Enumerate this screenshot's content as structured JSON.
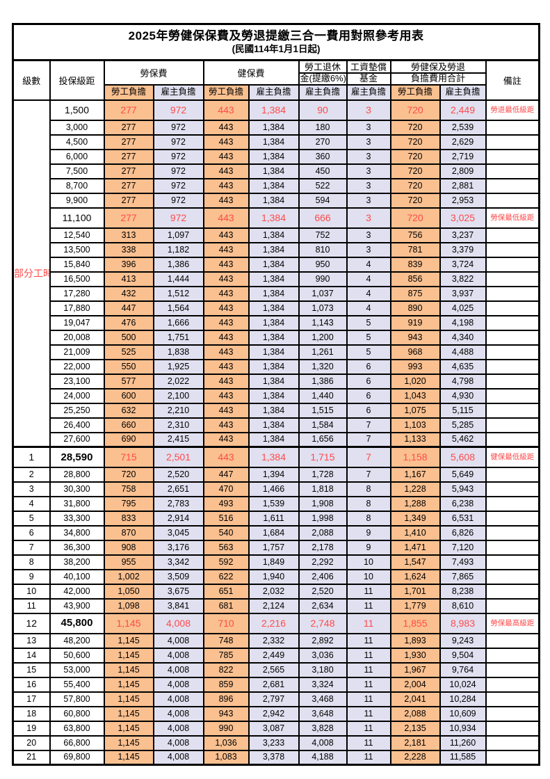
{
  "title": "2025年勞健保保費及勞退提繳三合一費用對照參考用表",
  "subtitle": "(民國114年1月1日起)",
  "columns": {
    "level": "級數",
    "bracket": "投保級距",
    "labor_insurance": "勞保費",
    "health_insurance": "健保費",
    "pension_line1": "勞工退休",
    "pension_line2": "金(提繳6%)",
    "wage_fund_line1": "工資墊償",
    "wage_fund_line2": "基金",
    "total_line1": "勞健保及勞退",
    "total_line2": "負擔費用合計",
    "remark": "備註",
    "employee_share": "勞工負擔",
    "employer_share": "雇主負擔"
  },
  "part_time_label": "部分工時",
  "colors": {
    "employee_bg": "#FAC090",
    "employer_bg": "#E0E0F0",
    "highlight_text": "#FF4A4A",
    "border": "#000000"
  },
  "rows": [
    {
      "level": "",
      "bracket": "1,500",
      "labor_emp": "277",
      "labor_er": "972",
      "health_emp": "443",
      "health_er": "1,384",
      "pension_er": "90",
      "fund_er": "3",
      "total_emp": "720",
      "total_er": "2,449",
      "remark": "勞退最低級距",
      "highlight": true,
      "bold_bracket": false
    },
    {
      "level": "",
      "bracket": "3,000",
      "labor_emp": "277",
      "labor_er": "972",
      "health_emp": "443",
      "health_er": "1,384",
      "pension_er": "180",
      "fund_er": "3",
      "total_emp": "720",
      "total_er": "2,539",
      "remark": "",
      "highlight": false,
      "bold_bracket": false
    },
    {
      "level": "",
      "bracket": "4,500",
      "labor_emp": "277",
      "labor_er": "972",
      "health_emp": "443",
      "health_er": "1,384",
      "pension_er": "270",
      "fund_er": "3",
      "total_emp": "720",
      "total_er": "2,629",
      "remark": "",
      "highlight": false,
      "bold_bracket": false
    },
    {
      "level": "",
      "bracket": "6,000",
      "labor_emp": "277",
      "labor_er": "972",
      "health_emp": "443",
      "health_er": "1,384",
      "pension_er": "360",
      "fund_er": "3",
      "total_emp": "720",
      "total_er": "2,719",
      "remark": "",
      "highlight": false,
      "bold_bracket": false
    },
    {
      "level": "",
      "bracket": "7,500",
      "labor_emp": "277",
      "labor_er": "972",
      "health_emp": "443",
      "health_er": "1,384",
      "pension_er": "450",
      "fund_er": "3",
      "total_emp": "720",
      "total_er": "2,809",
      "remark": "",
      "highlight": false,
      "bold_bracket": false
    },
    {
      "level": "",
      "bracket": "8,700",
      "labor_emp": "277",
      "labor_er": "972",
      "health_emp": "443",
      "health_er": "1,384",
      "pension_er": "522",
      "fund_er": "3",
      "total_emp": "720",
      "total_er": "2,881",
      "remark": "",
      "highlight": false,
      "bold_bracket": false
    },
    {
      "level": "",
      "bracket": "9,900",
      "labor_emp": "277",
      "labor_er": "972",
      "health_emp": "443",
      "health_er": "1,384",
      "pension_er": "594",
      "fund_er": "3",
      "total_emp": "720",
      "total_er": "2,953",
      "remark": "",
      "highlight": false,
      "bold_bracket": false
    },
    {
      "level": "",
      "bracket": "11,100",
      "labor_emp": "277",
      "labor_er": "972",
      "health_emp": "443",
      "health_er": "1,384",
      "pension_er": "666",
      "fund_er": "3",
      "total_emp": "720",
      "total_er": "3,025",
      "remark": "勞保最低級距",
      "highlight": true,
      "bold_bracket": false
    },
    {
      "level": "",
      "bracket": "12,540",
      "labor_emp": "313",
      "labor_er": "1,097",
      "health_emp": "443",
      "health_er": "1,384",
      "pension_er": "752",
      "fund_er": "3",
      "total_emp": "756",
      "total_er": "3,237",
      "remark": "",
      "highlight": false,
      "bold_bracket": false
    },
    {
      "level": "",
      "bracket": "13,500",
      "labor_emp": "338",
      "labor_er": "1,182",
      "health_emp": "443",
      "health_er": "1,384",
      "pension_er": "810",
      "fund_er": "3",
      "total_emp": "781",
      "total_er": "3,379",
      "remark": "",
      "highlight": false,
      "bold_bracket": false
    },
    {
      "level": "",
      "bracket": "15,840",
      "labor_emp": "396",
      "labor_er": "1,386",
      "health_emp": "443",
      "health_er": "1,384",
      "pension_er": "950",
      "fund_er": "4",
      "total_emp": "839",
      "total_er": "3,724",
      "remark": "",
      "highlight": false,
      "bold_bracket": false
    },
    {
      "level": "",
      "bracket": "16,500",
      "labor_emp": "413",
      "labor_er": "1,444",
      "health_emp": "443",
      "health_er": "1,384",
      "pension_er": "990",
      "fund_er": "4",
      "total_emp": "856",
      "total_er": "3,822",
      "remark": "",
      "highlight": false,
      "bold_bracket": false
    },
    {
      "level": "",
      "bracket": "17,280",
      "labor_emp": "432",
      "labor_er": "1,512",
      "health_emp": "443",
      "health_er": "1,384",
      "pension_er": "1,037",
      "fund_er": "4",
      "total_emp": "875",
      "total_er": "3,937",
      "remark": "",
      "highlight": false,
      "bold_bracket": false
    },
    {
      "level": "",
      "bracket": "17,880",
      "labor_emp": "447",
      "labor_er": "1,564",
      "health_emp": "443",
      "health_er": "1,384",
      "pension_er": "1,073",
      "fund_er": "4",
      "total_emp": "890",
      "total_er": "4,025",
      "remark": "",
      "highlight": false,
      "bold_bracket": false
    },
    {
      "level": "",
      "bracket": "19,047",
      "labor_emp": "476",
      "labor_er": "1,666",
      "health_emp": "443",
      "health_er": "1,384",
      "pension_er": "1,143",
      "fund_er": "5",
      "total_emp": "919",
      "total_er": "4,198",
      "remark": "",
      "highlight": false,
      "bold_bracket": false
    },
    {
      "level": "",
      "bracket": "20,008",
      "labor_emp": "500",
      "labor_er": "1,751",
      "health_emp": "443",
      "health_er": "1,384",
      "pension_er": "1,200",
      "fund_er": "5",
      "total_emp": "943",
      "total_er": "4,340",
      "remark": "",
      "highlight": false,
      "bold_bracket": false
    },
    {
      "level": "",
      "bracket": "21,009",
      "labor_emp": "525",
      "labor_er": "1,838",
      "health_emp": "443",
      "health_er": "1,384",
      "pension_er": "1,261",
      "fund_er": "5",
      "total_emp": "968",
      "total_er": "4,488",
      "remark": "",
      "highlight": false,
      "bold_bracket": false
    },
    {
      "level": "",
      "bracket": "22,000",
      "labor_emp": "550",
      "labor_er": "1,925",
      "health_emp": "443",
      "health_er": "1,384",
      "pension_er": "1,320",
      "fund_er": "6",
      "total_emp": "993",
      "total_er": "4,635",
      "remark": "",
      "highlight": false,
      "bold_bracket": false
    },
    {
      "level": "",
      "bracket": "23,100",
      "labor_emp": "577",
      "labor_er": "2,022",
      "health_emp": "443",
      "health_er": "1,384",
      "pension_er": "1,386",
      "fund_er": "6",
      "total_emp": "1,020",
      "total_er": "4,798",
      "remark": "",
      "highlight": false,
      "bold_bracket": false
    },
    {
      "level": "",
      "bracket": "24,000",
      "labor_emp": "600",
      "labor_er": "2,100",
      "health_emp": "443",
      "health_er": "1,384",
      "pension_er": "1,440",
      "fund_er": "6",
      "total_emp": "1,043",
      "total_er": "4,930",
      "remark": "",
      "highlight": false,
      "bold_bracket": false
    },
    {
      "level": "",
      "bracket": "25,250",
      "labor_emp": "632",
      "labor_er": "2,210",
      "health_emp": "443",
      "health_er": "1,384",
      "pension_er": "1,515",
      "fund_er": "6",
      "total_emp": "1,075",
      "total_er": "5,115",
      "remark": "",
      "highlight": false,
      "bold_bracket": false
    },
    {
      "level": "",
      "bracket": "26,400",
      "labor_emp": "660",
      "labor_er": "2,310",
      "health_emp": "443",
      "health_er": "1,384",
      "pension_er": "1,584",
      "fund_er": "7",
      "total_emp": "1,103",
      "total_er": "5,285",
      "remark": "",
      "highlight": false,
      "bold_bracket": false
    },
    {
      "level": "",
      "bracket": "27,600",
      "labor_emp": "690",
      "labor_er": "2,415",
      "health_emp": "443",
      "health_er": "1,384",
      "pension_er": "1,656",
      "fund_er": "7",
      "total_emp": "1,133",
      "total_er": "5,462",
      "remark": "",
      "highlight": false,
      "bold_bracket": false
    },
    {
      "level": "1",
      "bracket": "28,590",
      "labor_emp": "715",
      "labor_er": "2,501",
      "health_emp": "443",
      "health_er": "1,384",
      "pension_er": "1,715",
      "fund_er": "7",
      "total_emp": "1,158",
      "total_er": "5,608",
      "remark": "健保最低級距",
      "highlight": true,
      "bold_bracket": true
    },
    {
      "level": "2",
      "bracket": "28,800",
      "labor_emp": "720",
      "labor_er": "2,520",
      "health_emp": "447",
      "health_er": "1,394",
      "pension_er": "1,728",
      "fund_er": "7",
      "total_emp": "1,167",
      "total_er": "5,649",
      "remark": "",
      "highlight": false,
      "bold_bracket": false
    },
    {
      "level": "3",
      "bracket": "30,300",
      "labor_emp": "758",
      "labor_er": "2,651",
      "health_emp": "470",
      "health_er": "1,466",
      "pension_er": "1,818",
      "fund_er": "8",
      "total_emp": "1,228",
      "total_er": "5,943",
      "remark": "",
      "highlight": false,
      "bold_bracket": false
    },
    {
      "level": "4",
      "bracket": "31,800",
      "labor_emp": "795",
      "labor_er": "2,783",
      "health_emp": "493",
      "health_er": "1,539",
      "pension_er": "1,908",
      "fund_er": "8",
      "total_emp": "1,288",
      "total_er": "6,238",
      "remark": "",
      "highlight": false,
      "bold_bracket": false
    },
    {
      "level": "5",
      "bracket": "33,300",
      "labor_emp": "833",
      "labor_er": "2,914",
      "health_emp": "516",
      "health_er": "1,611",
      "pension_er": "1,998",
      "fund_er": "8",
      "total_emp": "1,349",
      "total_er": "6,531",
      "remark": "",
      "highlight": false,
      "bold_bracket": false
    },
    {
      "level": "6",
      "bracket": "34,800",
      "labor_emp": "870",
      "labor_er": "3,045",
      "health_emp": "540",
      "health_er": "1,684",
      "pension_er": "2,088",
      "fund_er": "9",
      "total_emp": "1,410",
      "total_er": "6,826",
      "remark": "",
      "highlight": false,
      "bold_bracket": false
    },
    {
      "level": "7",
      "bracket": "36,300",
      "labor_emp": "908",
      "labor_er": "3,176",
      "health_emp": "563",
      "health_er": "1,757",
      "pension_er": "2,178",
      "fund_er": "9",
      "total_emp": "1,471",
      "total_er": "7,120",
      "remark": "",
      "highlight": false,
      "bold_bracket": false
    },
    {
      "level": "8",
      "bracket": "38,200",
      "labor_emp": "955",
      "labor_er": "3,342",
      "health_emp": "592",
      "health_er": "1,849",
      "pension_er": "2,292",
      "fund_er": "10",
      "total_emp": "1,547",
      "total_er": "7,493",
      "remark": "",
      "highlight": false,
      "bold_bracket": false
    },
    {
      "level": "9",
      "bracket": "40,100",
      "labor_emp": "1,002",
      "labor_er": "3,509",
      "health_emp": "622",
      "health_er": "1,940",
      "pension_er": "2,406",
      "fund_er": "10",
      "total_emp": "1,624",
      "total_er": "7,865",
      "remark": "",
      "highlight": false,
      "bold_bracket": false
    },
    {
      "level": "10",
      "bracket": "42,000",
      "labor_emp": "1,050",
      "labor_er": "3,675",
      "health_emp": "651",
      "health_er": "2,032",
      "pension_er": "2,520",
      "fund_er": "11",
      "total_emp": "1,701",
      "total_er": "8,238",
      "remark": "",
      "highlight": false,
      "bold_bracket": false
    },
    {
      "level": "11",
      "bracket": "43,900",
      "labor_emp": "1,098",
      "labor_er": "3,841",
      "health_emp": "681",
      "health_er": "2,124",
      "pension_er": "2,634",
      "fund_er": "11",
      "total_emp": "1,779",
      "total_er": "8,610",
      "remark": "",
      "highlight": false,
      "bold_bracket": false
    },
    {
      "level": "12",
      "bracket": "45,800",
      "labor_emp": "1,145",
      "labor_er": "4,008",
      "health_emp": "710",
      "health_er": "2,216",
      "pension_er": "2,748",
      "fund_er": "11",
      "total_emp": "1,855",
      "total_er": "8,983",
      "remark": "勞保最高級距",
      "highlight": true,
      "bold_bracket": true
    },
    {
      "level": "13",
      "bracket": "48,200",
      "labor_emp": "1,145",
      "labor_er": "4,008",
      "health_emp": "748",
      "health_er": "2,332",
      "pension_er": "2,892",
      "fund_er": "11",
      "total_emp": "1,893",
      "total_er": "9,243",
      "remark": "",
      "highlight": false,
      "bold_bracket": false
    },
    {
      "level": "14",
      "bracket": "50,600",
      "labor_emp": "1,145",
      "labor_er": "4,008",
      "health_emp": "785",
      "health_er": "2,449",
      "pension_er": "3,036",
      "fund_er": "11",
      "total_emp": "1,930",
      "total_er": "9,504",
      "remark": "",
      "highlight": false,
      "bold_bracket": false
    },
    {
      "level": "15",
      "bracket": "53,000",
      "labor_emp": "1,145",
      "labor_er": "4,008",
      "health_emp": "822",
      "health_er": "2,565",
      "pension_er": "3,180",
      "fund_er": "11",
      "total_emp": "1,967",
      "total_er": "9,764",
      "remark": "",
      "highlight": false,
      "bold_bracket": false
    },
    {
      "level": "16",
      "bracket": "55,400",
      "labor_emp": "1,145",
      "labor_er": "4,008",
      "health_emp": "859",
      "health_er": "2,681",
      "pension_er": "3,324",
      "fund_er": "11",
      "total_emp": "2,004",
      "total_er": "10,024",
      "remark": "",
      "highlight": false,
      "bold_bracket": false
    },
    {
      "level": "17",
      "bracket": "57,800",
      "labor_emp": "1,145",
      "labor_er": "4,008",
      "health_emp": "896",
      "health_er": "2,797",
      "pension_er": "3,468",
      "fund_er": "11",
      "total_emp": "2,041",
      "total_er": "10,284",
      "remark": "",
      "highlight": false,
      "bold_bracket": false
    },
    {
      "level": "18",
      "bracket": "60,800",
      "labor_emp": "1,145",
      "labor_er": "4,008",
      "health_emp": "943",
      "health_er": "2,942",
      "pension_er": "3,648",
      "fund_er": "11",
      "total_emp": "2,088",
      "total_er": "10,609",
      "remark": "",
      "highlight": false,
      "bold_bracket": false
    },
    {
      "level": "19",
      "bracket": "63,800",
      "labor_emp": "1,145",
      "labor_er": "4,008",
      "health_emp": "990",
      "health_er": "3,087",
      "pension_er": "3,828",
      "fund_er": "11",
      "total_emp": "2,135",
      "total_er": "10,934",
      "remark": "",
      "highlight": false,
      "bold_bracket": false
    },
    {
      "level": "20",
      "bracket": "66,800",
      "labor_emp": "1,145",
      "labor_er": "4,008",
      "health_emp": "1,036",
      "health_er": "3,233",
      "pension_er": "4,008",
      "fund_er": "11",
      "total_emp": "2,181",
      "total_er": "11,260",
      "remark": "",
      "highlight": false,
      "bold_bracket": false
    },
    {
      "level": "21",
      "bracket": "69,800",
      "labor_emp": "1,145",
      "labor_er": "4,008",
      "health_emp": "1,083",
      "health_er": "3,378",
      "pension_er": "4,188",
      "fund_er": "11",
      "total_emp": "2,228",
      "total_er": "11,585",
      "remark": "",
      "highlight": false,
      "bold_bracket": false
    }
  ]
}
